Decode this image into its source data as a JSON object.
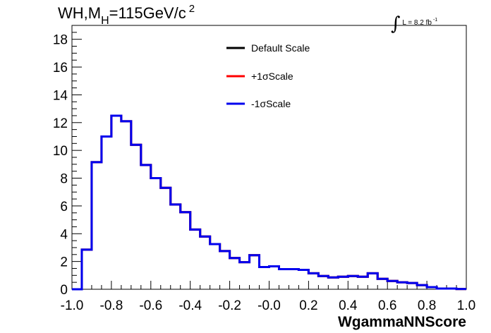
{
  "title": {
    "prefix": "WH,M",
    "sub": "H",
    "mid": "=115GeV/c",
    "sup": "2"
  },
  "lumi": {
    "integral": "∫",
    "text": "L = 8.2 fb",
    "sup": "-1"
  },
  "chart_data": {
    "type": "line",
    "step": true,
    "xlabel": "WgammaNNScore",
    "ylabel": "",
    "xlim": [
      -1.0,
      1.0
    ],
    "ylim": [
      0,
      19
    ],
    "x_ticks": [
      "-1.0",
      "-0.8",
      "-0.6",
      "-0.4",
      "-0.2",
      "-0.0",
      "0.2",
      "0.4",
      "0.6",
      "0.8",
      "1.0"
    ],
    "y_ticks": [
      "0",
      "2",
      "4",
      "6",
      "8",
      "10",
      "12",
      "14",
      "16",
      "18"
    ],
    "legend_position": "top-center",
    "bin_edges": [
      -1.0,
      -0.95,
      -0.9,
      -0.85,
      -0.8,
      -0.75,
      -0.7,
      -0.65,
      -0.6,
      -0.55,
      -0.5,
      -0.45,
      -0.4,
      -0.35,
      -0.3,
      -0.25,
      -0.2,
      -0.15,
      -0.1,
      -0.05,
      0.0,
      0.05,
      0.1,
      0.15,
      0.2,
      0.25,
      0.3,
      0.35,
      0.4,
      0.45,
      0.5,
      0.55,
      0.6,
      0.65,
      0.7,
      0.75,
      0.8,
      0.85,
      0.9,
      0.95,
      1.0
    ],
    "series": [
      {
        "name": "Default Scale",
        "color": "#000000",
        "values": [
          0.0,
          2.85,
          9.15,
          11.0,
          12.5,
          12.1,
          10.4,
          8.95,
          8.0,
          7.3,
          6.1,
          5.55,
          4.3,
          3.8,
          3.25,
          2.75,
          2.25,
          1.95,
          2.45,
          1.6,
          1.65,
          1.45,
          1.45,
          1.4,
          1.15,
          0.95,
          0.85,
          0.9,
          0.95,
          0.9,
          1.15,
          0.75,
          0.6,
          0.5,
          0.45,
          0.3,
          0.15,
          0.05,
          0.05,
          0.02
        ]
      },
      {
        "name": "+1σScale",
        "color": "#ff0000",
        "values": [
          0.0,
          2.85,
          9.15,
          11.0,
          12.5,
          12.1,
          10.4,
          8.95,
          8.0,
          7.3,
          6.1,
          5.55,
          4.3,
          3.8,
          3.25,
          2.75,
          2.25,
          1.95,
          2.45,
          1.6,
          1.65,
          1.45,
          1.45,
          1.4,
          1.15,
          0.95,
          0.85,
          0.9,
          0.95,
          0.9,
          1.15,
          0.75,
          0.6,
          0.5,
          0.45,
          0.3,
          0.15,
          0.05,
          0.05,
          0.02
        ]
      },
      {
        "name": "-1σScale",
        "color": "#0000ee",
        "values": [
          0.0,
          2.85,
          9.15,
          11.0,
          12.5,
          12.1,
          10.4,
          8.95,
          8.0,
          7.3,
          6.1,
          5.55,
          4.3,
          3.8,
          3.25,
          2.75,
          2.25,
          1.95,
          2.45,
          1.6,
          1.65,
          1.45,
          1.45,
          1.4,
          1.15,
          0.95,
          0.85,
          0.9,
          0.95,
          0.9,
          1.15,
          0.75,
          0.6,
          0.5,
          0.45,
          0.3,
          0.15,
          0.05,
          0.05,
          0.02
        ]
      }
    ]
  }
}
